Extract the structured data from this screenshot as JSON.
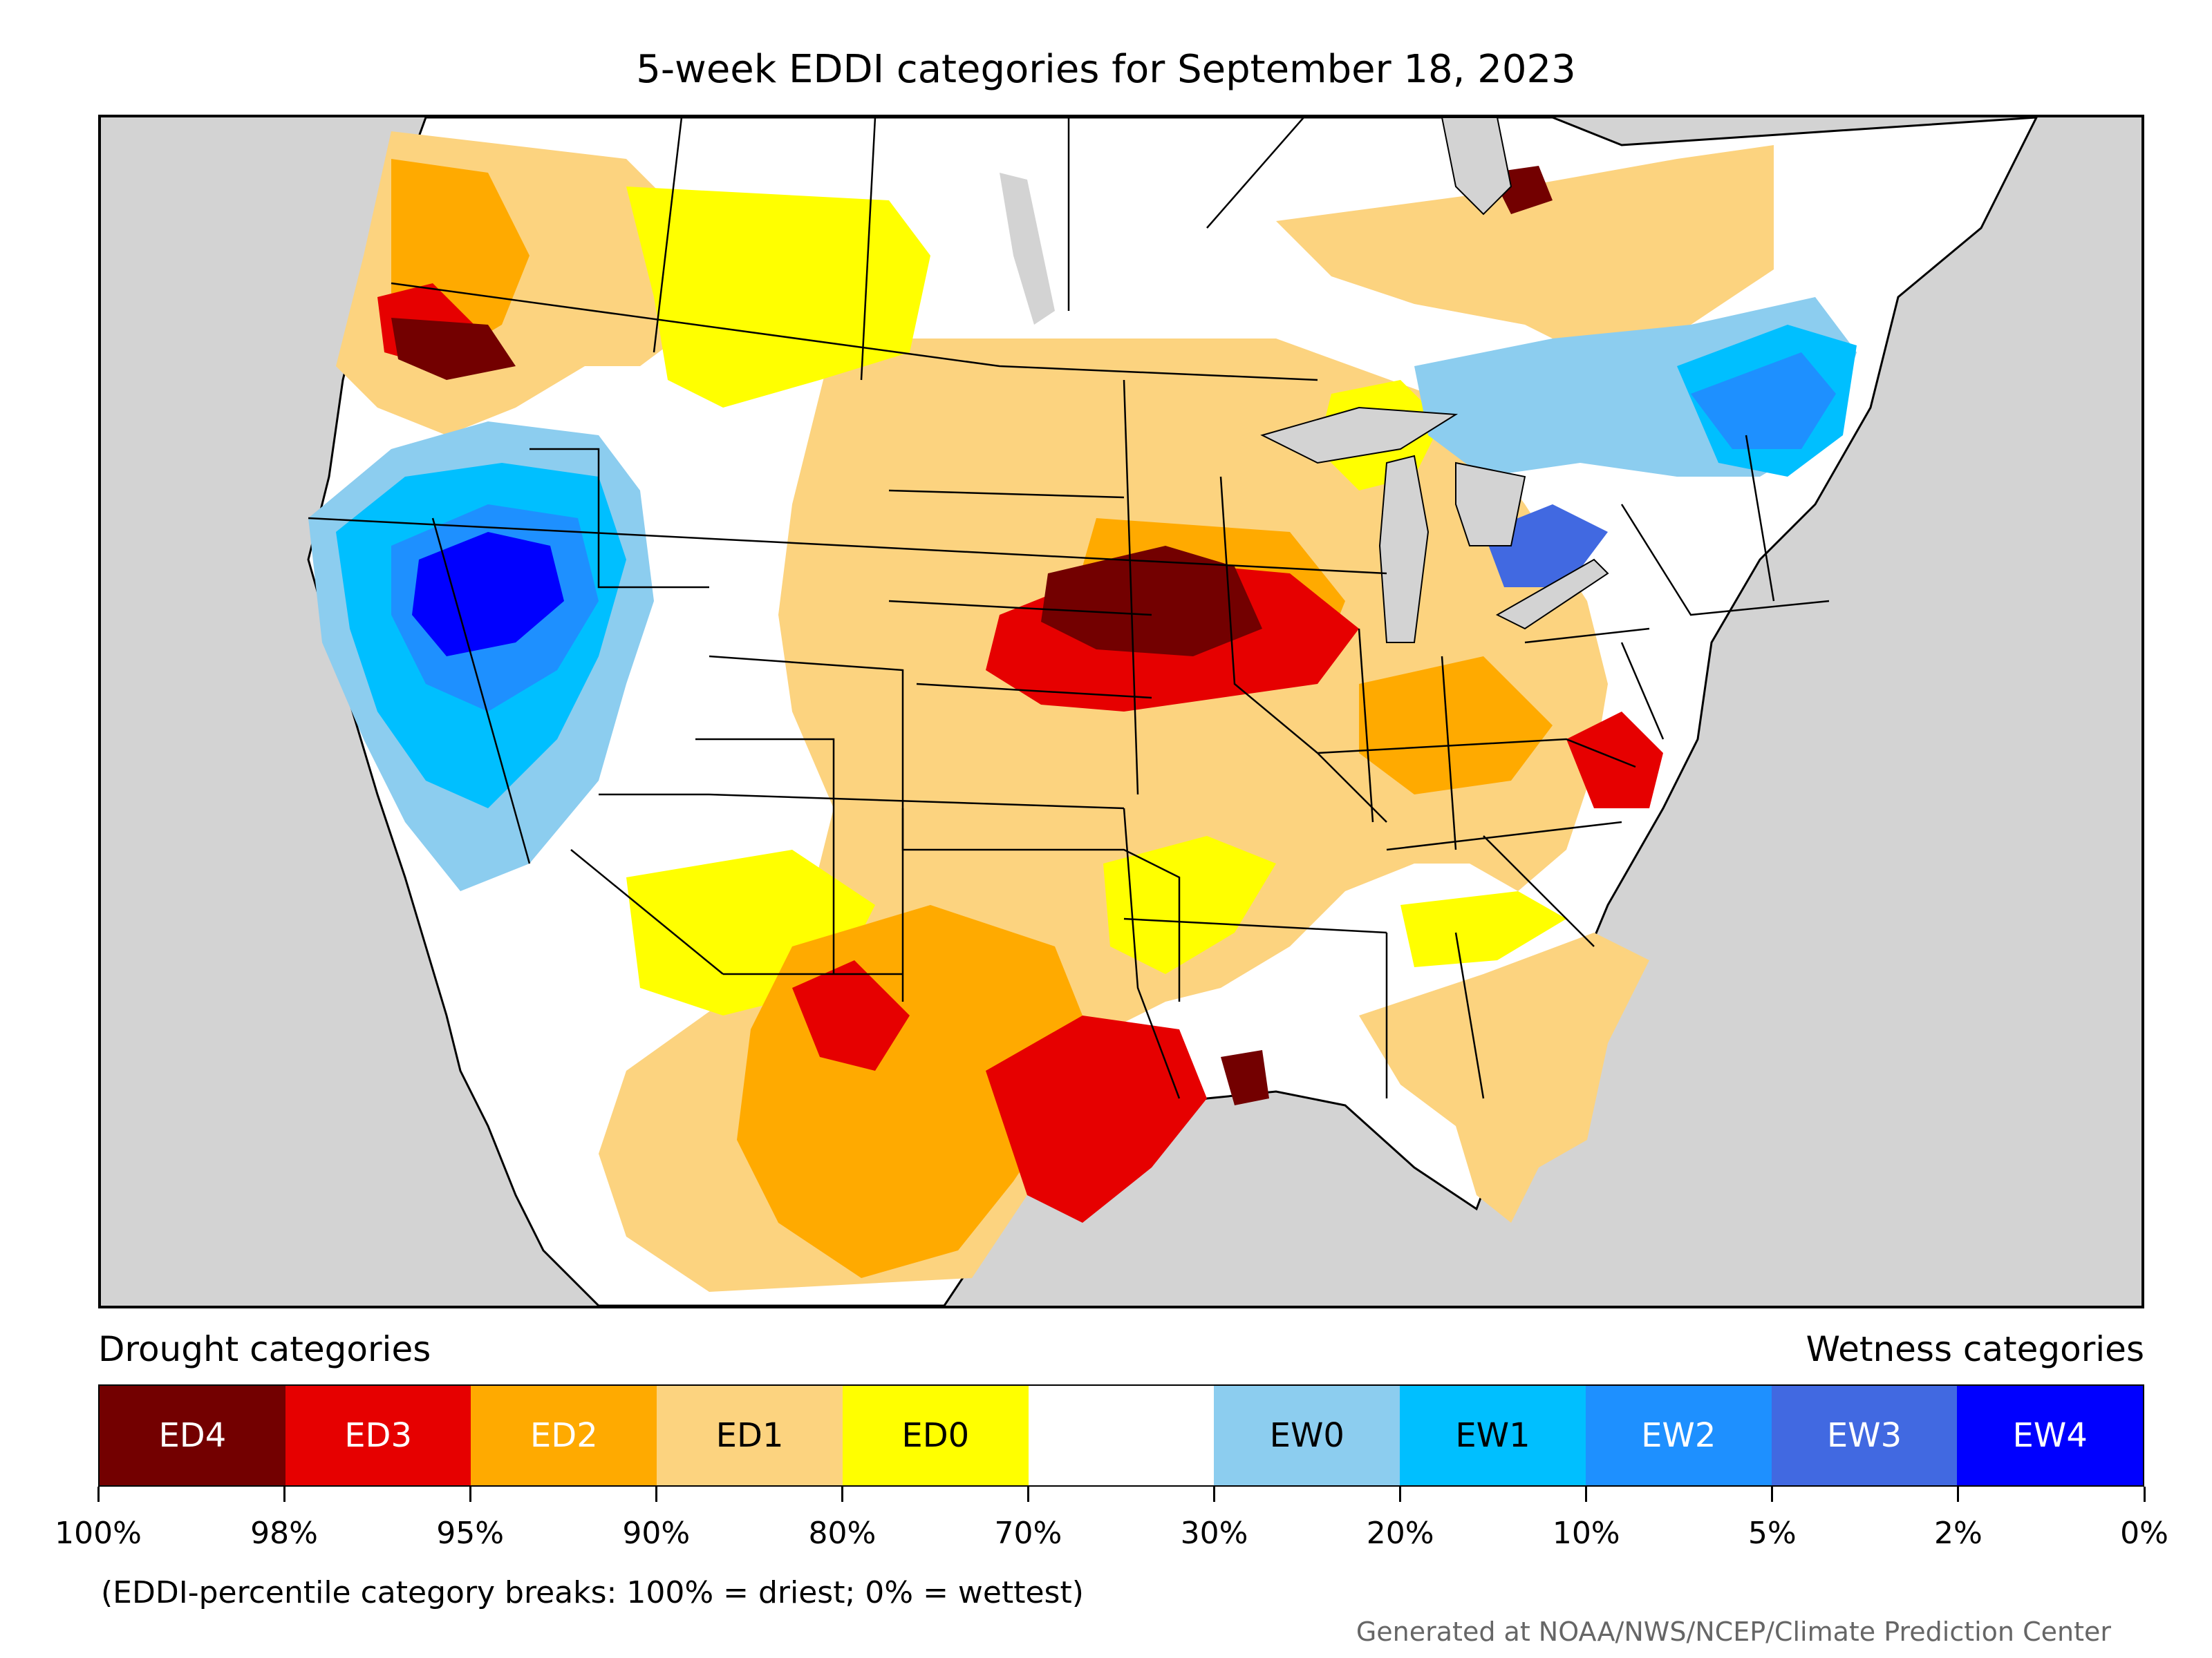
{
  "title": "5-week EDDI categories for September 18, 2023",
  "legend": {
    "drought_heading": "Drought categories",
    "wetness_heading": "Wetness categories",
    "categories": [
      {
        "label": "ED4",
        "color": "#730000",
        "text_color": "#ffffff"
      },
      {
        "label": "ED3",
        "color": "#e60000",
        "text_color": "#ffffff"
      },
      {
        "label": "ED2",
        "color": "#ffaa00",
        "text_color": "#ffffff"
      },
      {
        "label": "ED1",
        "color": "#fcd37f",
        "text_color": "#000000"
      },
      {
        "label": "ED0",
        "color": "#ffff00",
        "text_color": "#000000"
      },
      {
        "label": "",
        "color": "#ffffff",
        "text_color": "#000000"
      },
      {
        "label": "EW0",
        "color": "#8ccdef",
        "text_color": "#000000"
      },
      {
        "label": "EW1",
        "color": "#00bfff",
        "text_color": "#000000"
      },
      {
        "label": "EW2",
        "color": "#1e90ff",
        "text_color": "#ffffff"
      },
      {
        "label": "EW3",
        "color": "#4169e1",
        "text_color": "#ffffff"
      },
      {
        "label": "EW4",
        "color": "#0000ff",
        "text_color": "#ffffff"
      }
    ],
    "breaks": [
      "100%",
      "98%",
      "95%",
      "90%",
      "80%",
      "70%",
      "30%",
      "20%",
      "10%",
      "5%",
      "2%",
      "0%"
    ]
  },
  "note": "(EDDI-percentile category breaks: 100% = driest; 0% = wettest)",
  "credit": "Generated at NOAA/NWS/NCEP/Climate Prediction Center"
}
